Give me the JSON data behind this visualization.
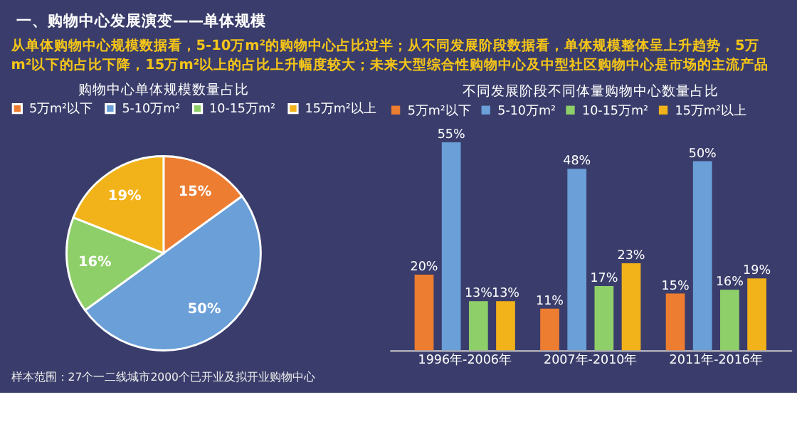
{
  "chart_data": [
    {
      "type": "pie",
      "title": "购物中心单体规模数量占比",
      "categories": [
        "5万m²以下",
        "5-10万m²",
        "10-15万m²",
        "15万m²以上"
      ],
      "values": [
        15,
        50,
        16,
        19
      ],
      "colors": [
        "#ed7d31",
        "#6a9fd8",
        "#8fcf6a",
        "#f2b21a"
      ],
      "value_labels": [
        "15%",
        "50%",
        "16%",
        "19%"
      ],
      "legend": "top",
      "annotations": [
        "一、购物中心发展演变——单体规模",
        "从单体购物中心规模数据看，5-10万m²的购物中心占比过半；从不同发展阶段数据看，单体规模整体呈上升趋势，5万m²以下的占比下降，15万m²以上的占比上升幅度较大；未来大型综合性购物中心及中型社区购物中心是市场的主流产品",
        "样本范围：27个一二线城市2000个已开业及拟开业购物中心"
      ]
    },
    {
      "type": "bar",
      "title": "不同发展阶段不同体量购物中心数量占比",
      "categories": [
        "1996年-2006年",
        "2007年-2010年",
        "2011年-2016年"
      ],
      "legend": "top",
      "series": [
        {
          "name": "5万m²以下",
          "color": "#ed7d31",
          "values": [
            20,
            11,
            15
          ],
          "value_labels": [
            "20%",
            "11%",
            "15%"
          ]
        },
        {
          "name": "5-10万m²",
          "color": "#6a9fd8",
          "values": [
            55,
            48,
            50
          ],
          "value_labels": [
            "55%",
            "48%",
            "50%"
          ]
        },
        {
          "name": "10-15万m²",
          "color": "#8fcf6a",
          "values": [
            13,
            17,
            16
          ],
          "value_labels": [
            "13%",
            "17%",
            "16%"
          ]
        },
        {
          "name": "15万m²以上",
          "color": "#f2b21a",
          "values": [
            13,
            23,
            19
          ],
          "value_labels": [
            "13%",
            "23%",
            "19%"
          ]
        }
      ]
    }
  ]
}
